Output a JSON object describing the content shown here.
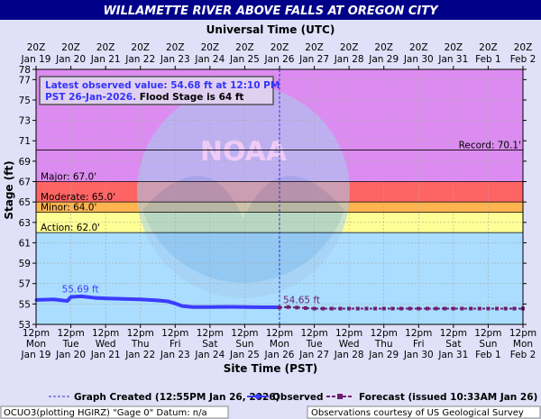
{
  "title": "WILLAMETTE RIVER ABOVE FALLS AT OREGON CITY",
  "top_axis_title": "Universal Time (UTC)",
  "bottom_axis_title": "Site Time (PST)",
  "y_axis_title": "Stage (ft)",
  "info_box": {
    "line1": "Latest observed value: 54.68 ft at 12:10 PM",
    "line2a": "PST 26-Jan-2026.",
    "line2b": " Flood Stage is 64 ft"
  },
  "legend": {
    "created": "Graph Created (12:55PM Jan 26, 2026)",
    "observed": "Observed",
    "forecast": "Forecast (issued 10:33AM Jan 26)"
  },
  "footer": {
    "left": "OCUO3(plotting HGIRZ) \"Gage 0\" Datum: n/a",
    "right": "Observations courtesy of US Geological Survey"
  },
  "colors": {
    "record": "#dc8cf0",
    "major": "#dc8cf0",
    "moderate": "#ff6464",
    "minor": "#ffb450",
    "action": "#ffff96",
    "observed": "#3c3cff",
    "forecast": "#6e1e6e",
    "title_bg": "#000088",
    "info_text": "#3333ff"
  },
  "chart_data": {
    "type": "line",
    "ylim": [
      53,
      78
    ],
    "xlim": [
      0,
      14
    ],
    "x_unit": "days since Jan 19 12am PST",
    "yticks": [
      53,
      55,
      57,
      59,
      61,
      63,
      65,
      67,
      69,
      71,
      73,
      75,
      77,
      78
    ],
    "bottom_ticks": [
      {
        "x": 0,
        "l1": "12pm",
        "l2": "Mon",
        "l3": "Jan 19"
      },
      {
        "x": 1,
        "l1": "12pm",
        "l2": "Tue",
        "l3": "Jan 20"
      },
      {
        "x": 2,
        "l1": "12pm",
        "l2": "Wed",
        "l3": "Jan 21"
      },
      {
        "x": 3,
        "l1": "12pm",
        "l2": "Thu",
        "l3": "Jan 22"
      },
      {
        "x": 4,
        "l1": "12pm",
        "l2": "Fri",
        "l3": "Jan 23"
      },
      {
        "x": 5,
        "l1": "12pm",
        "l2": "Sat",
        "l3": "Jan 24"
      },
      {
        "x": 6,
        "l1": "12pm",
        "l2": "Sun",
        "l3": "Jan 25"
      },
      {
        "x": 7,
        "l1": "12pm",
        "l2": "Mon",
        "l3": "Jan 26"
      },
      {
        "x": 8,
        "l1": "12pm",
        "l2": "Tue",
        "l3": "Jan 27"
      },
      {
        "x": 9,
        "l1": "12pm",
        "l2": "Wed",
        "l3": "Jan 28"
      },
      {
        "x": 10,
        "l1": "12pm",
        "l2": "Thu",
        "l3": "Jan 29"
      },
      {
        "x": 11,
        "l1": "12pm",
        "l2": "Fri",
        "l3": "Jan 30"
      },
      {
        "x": 12,
        "l1": "12pm",
        "l2": "Sat",
        "l3": "Jan 31"
      },
      {
        "x": 13,
        "l1": "12pm",
        "l2": "Sun",
        "l3": "Feb 1"
      },
      {
        "x": 14,
        "l1": "12pm",
        "l2": "Mon",
        "l3": "Feb 2"
      }
    ],
    "top_ticks": [
      {
        "x": 0,
        "l1": "20Z",
        "l2": "Jan 19"
      },
      {
        "x": 1,
        "l1": "20Z",
        "l2": "Jan 20"
      },
      {
        "x": 2,
        "l1": "20Z",
        "l2": "Jan 21"
      },
      {
        "x": 3,
        "l1": "20Z",
        "l2": "Jan 22"
      },
      {
        "x": 4,
        "l1": "20Z",
        "l2": "Jan 23"
      },
      {
        "x": 5,
        "l1": "20Z",
        "l2": "Jan 24"
      },
      {
        "x": 6,
        "l1": "20Z",
        "l2": "Jan 25"
      },
      {
        "x": 7,
        "l1": "20Z",
        "l2": "Jan 26"
      },
      {
        "x": 8,
        "l1": "20Z",
        "l2": "Jan 27"
      },
      {
        "x": 9,
        "l1": "20Z",
        "l2": "Jan 28"
      },
      {
        "x": 10,
        "l1": "20Z",
        "l2": "Jan 29"
      },
      {
        "x": 11,
        "l1": "20Z",
        "l2": "Jan 30"
      },
      {
        "x": 12,
        "l1": "20Z",
        "l2": "Jan 31"
      },
      {
        "x": 13,
        "l1": "20Z",
        "l2": "Feb 1"
      },
      {
        "x": 14,
        "l1": "20Z",
        "l2": "Feb 2"
      }
    ],
    "categories_lines": [
      {
        "name": "Record",
        "value": 70.1,
        "label": "Record: 70.1'"
      },
      {
        "name": "Major",
        "value": 67.0,
        "label": "Major: 67.0'"
      },
      {
        "name": "Moderate",
        "value": 65.0,
        "label": "Moderate: 65.0'"
      },
      {
        "name": "Minor",
        "value": 64.0,
        "label": "Minor: 64.0'"
      },
      {
        "name": "Action",
        "value": 62.0,
        "label": "Action: 62.0'"
      }
    ],
    "now_x": 7.0,
    "observed": [
      [
        0,
        55.4
      ],
      [
        0.5,
        55.45
      ],
      [
        0.9,
        55.3
      ],
      [
        1.0,
        55.69
      ],
      [
        1.3,
        55.75
      ],
      [
        1.7,
        55.6
      ],
      [
        2.0,
        55.55
      ],
      [
        2.5,
        55.5
      ],
      [
        3.0,
        55.45
      ],
      [
        3.5,
        55.35
      ],
      [
        3.8,
        55.25
      ],
      [
        4.0,
        55.05
      ],
      [
        4.2,
        54.8
      ],
      [
        4.5,
        54.7
      ],
      [
        5.0,
        54.7
      ],
      [
        5.5,
        54.72
      ],
      [
        6.0,
        54.7
      ],
      [
        6.5,
        54.68
      ],
      [
        7.0,
        54.68
      ]
    ],
    "forecast": [
      [
        7.0,
        54.65
      ],
      [
        7.25,
        54.7
      ],
      [
        7.5,
        54.65
      ],
      [
        7.75,
        54.6
      ],
      [
        8.0,
        54.55
      ],
      [
        8.25,
        54.55
      ],
      [
        8.5,
        54.55
      ],
      [
        8.75,
        54.55
      ],
      [
        9.0,
        54.55
      ],
      [
        9.25,
        54.55
      ],
      [
        9.5,
        54.55
      ],
      [
        9.75,
        54.55
      ],
      [
        10.0,
        54.55
      ],
      [
        10.25,
        54.55
      ],
      [
        10.5,
        54.55
      ],
      [
        10.75,
        54.55
      ],
      [
        11.0,
        54.55
      ],
      [
        11.25,
        54.55
      ],
      [
        11.5,
        54.55
      ],
      [
        11.75,
        54.55
      ],
      [
        12.0,
        54.55
      ],
      [
        12.25,
        54.55
      ],
      [
        12.5,
        54.55
      ],
      [
        12.75,
        54.55
      ],
      [
        13.0,
        54.55
      ],
      [
        13.25,
        54.55
      ],
      [
        13.5,
        54.55
      ],
      [
        13.75,
        54.55
      ],
      [
        14.0,
        54.55
      ]
    ],
    "annotations": [
      {
        "x": 1.0,
        "y": 55.69,
        "text": "55.69 ft"
      },
      {
        "x": 7.0,
        "y": 54.65,
        "text": "54.65 ft"
      }
    ]
  }
}
